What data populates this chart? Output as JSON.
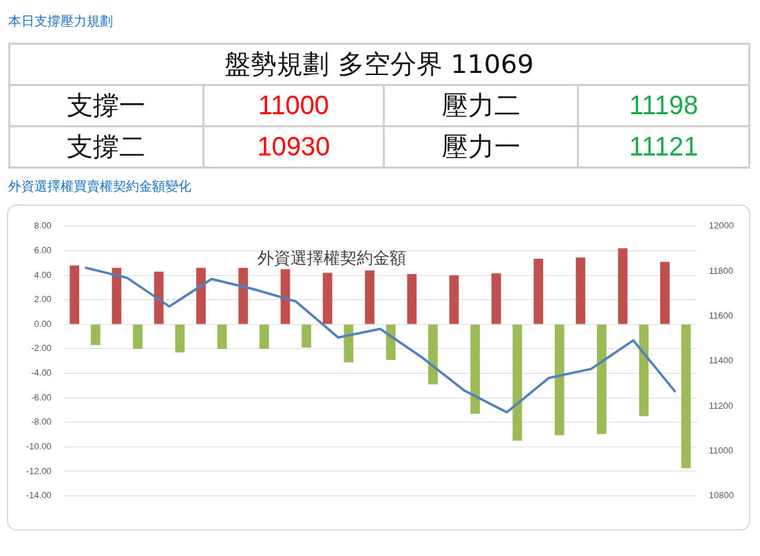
{
  "chart_data": [
    {
      "type": "other",
      "title": "本日支撐壓力規劃",
      "annotations": [
        "盤勢規劃 多空分界 11069",
        "支撐一",
        "11000",
        "壓力二",
        "11198",
        "支撐二",
        "10930",
        "壓力一",
        "11121"
      ]
    },
    {
      "type": "bar",
      "title": "外資選擇權買賣權契約金額變化",
      "subtitle": "外資選擇權契約金額",
      "categories": [
        null,
        null,
        null,
        null,
        null,
        null,
        null,
        null,
        null,
        null,
        null,
        null,
        null,
        null,
        null
      ],
      "series": [
        {
          "type": "bar",
          "color": "#c0504d",
          "values": [
            4.8,
            4.6,
            4.3,
            4.6,
            4.6,
            4.5,
            4.2,
            4.4,
            4.1,
            4.0,
            4.15,
            5.35,
            5.45,
            6.2,
            5.1
          ]
        },
        {
          "type": "bar",
          "color": "#9bbb59",
          "values": [
            -1.7,
            -2.0,
            -2.3,
            -2.0,
            -2.0,
            -1.9,
            -3.1,
            -2.9,
            -4.9,
            -7.3,
            -9.5,
            -9.05,
            -8.95,
            -7.5,
            -11.75
          ]
        },
        {
          "type": "line",
          "axis": "y2",
          "color": "#4f81bd",
          "marker": "none",
          "values": [
            11816,
            11770,
            11643,
            11765,
            11720,
            11665,
            11505,
            11543,
            11415,
            11268,
            11172,
            11325,
            11365,
            11492,
            11262
          ]
        }
      ],
      "ylim": [
        -14,
        8
      ],
      "yticks": [
        {
          "value": -14,
          "label": "-14.00"
        },
        {
          "value": -12,
          "label": "-12.00"
        },
        {
          "value": -10,
          "label": "-10.00"
        },
        {
          "value": -8,
          "label": "-8.00"
        },
        {
          "value": -6,
          "label": "-6.00"
        },
        {
          "value": -4,
          "label": "-4.00"
        },
        {
          "value": -2,
          "label": "-2.00"
        },
        {
          "value": 0,
          "label": "0.00"
        },
        {
          "value": 2,
          "label": "2.00"
        },
        {
          "value": 4,
          "label": "4.00"
        },
        {
          "value": 6,
          "label": "6.00"
        },
        {
          "value": 8,
          "label": "8.00"
        }
      ],
      "y2lim": [
        10800,
        12000
      ],
      "y2ticks": [
        10800,
        11000,
        11200,
        11400,
        11600,
        11800,
        12000
      ],
      "grid": "y",
      "legend": false
    }
  ]
}
